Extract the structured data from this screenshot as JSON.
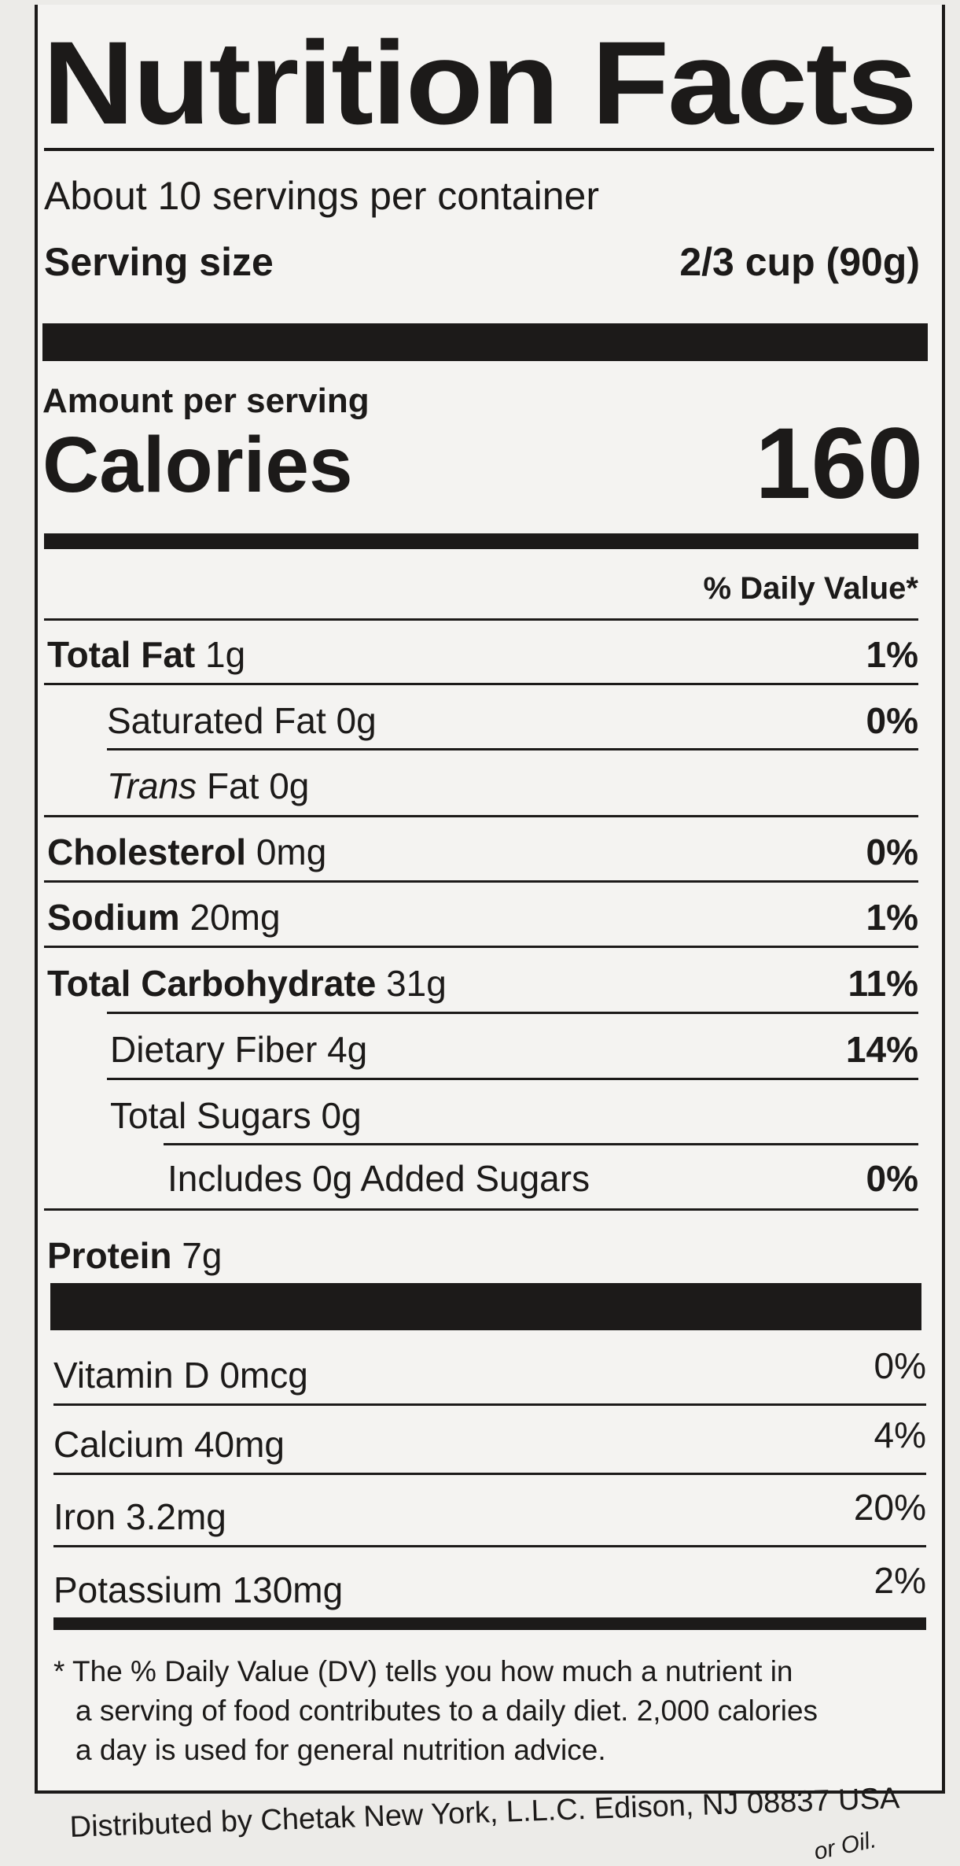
{
  "label": {
    "title": "Nutrition Facts",
    "servings": "About 10 servings per container",
    "serving_size_label": "Serving size",
    "serving_size_value": "2/3 cup (90g)",
    "amount_per_serving": "Amount per serving",
    "calories_label": "Calories",
    "calories_value": "160",
    "daily_value_header": "% Daily Value*",
    "nutrients": [
      {
        "name": "Total Fat",
        "amount": "1g",
        "dv": "1%"
      },
      {
        "name": "Saturated Fat",
        "amount": "0g",
        "dv": "0%"
      },
      {
        "name": "Trans",
        "name_suffix": "Fat",
        "amount": "0g",
        "dv": ""
      },
      {
        "name": "Cholesterol",
        "amount": "0mg",
        "dv": "0%"
      },
      {
        "name": "Sodium",
        "amount": "20mg",
        "dv": "1%"
      },
      {
        "name": "Total Carbohydrate",
        "amount": "31g",
        "dv": "11%"
      },
      {
        "name": "Dietary Fiber",
        "amount": "4g",
        "dv": "14%"
      },
      {
        "name": "Total Sugars",
        "amount": "0g",
        "dv": ""
      },
      {
        "name": "Includes 0g Added Sugars",
        "amount": "",
        "dv": "0%"
      },
      {
        "name": "Protein",
        "amount": "7g",
        "dv": ""
      }
    ],
    "vitamins": [
      {
        "name": "Vitamin D",
        "amount": "0mcg",
        "dv": "0%"
      },
      {
        "name": "Calcium",
        "amount": "40mg",
        "dv": "4%"
      },
      {
        "name": "Iron",
        "amount": "3.2mg",
        "dv": "20%"
      },
      {
        "name": "Potassium",
        "amount": "130mg",
        "dv": "2%"
      }
    ],
    "footnote": [
      "* The % Daily Value (DV) tells you how much a nutrient in",
      "a serving of food contributes to a daily diet. 2,000 calories",
      "a day is used for general nutrition advice."
    ]
  },
  "distributor": "Distributed by Chetak New York, L.L.C. Edison, NJ 08837 USA",
  "partial_text": "or Oil."
}
